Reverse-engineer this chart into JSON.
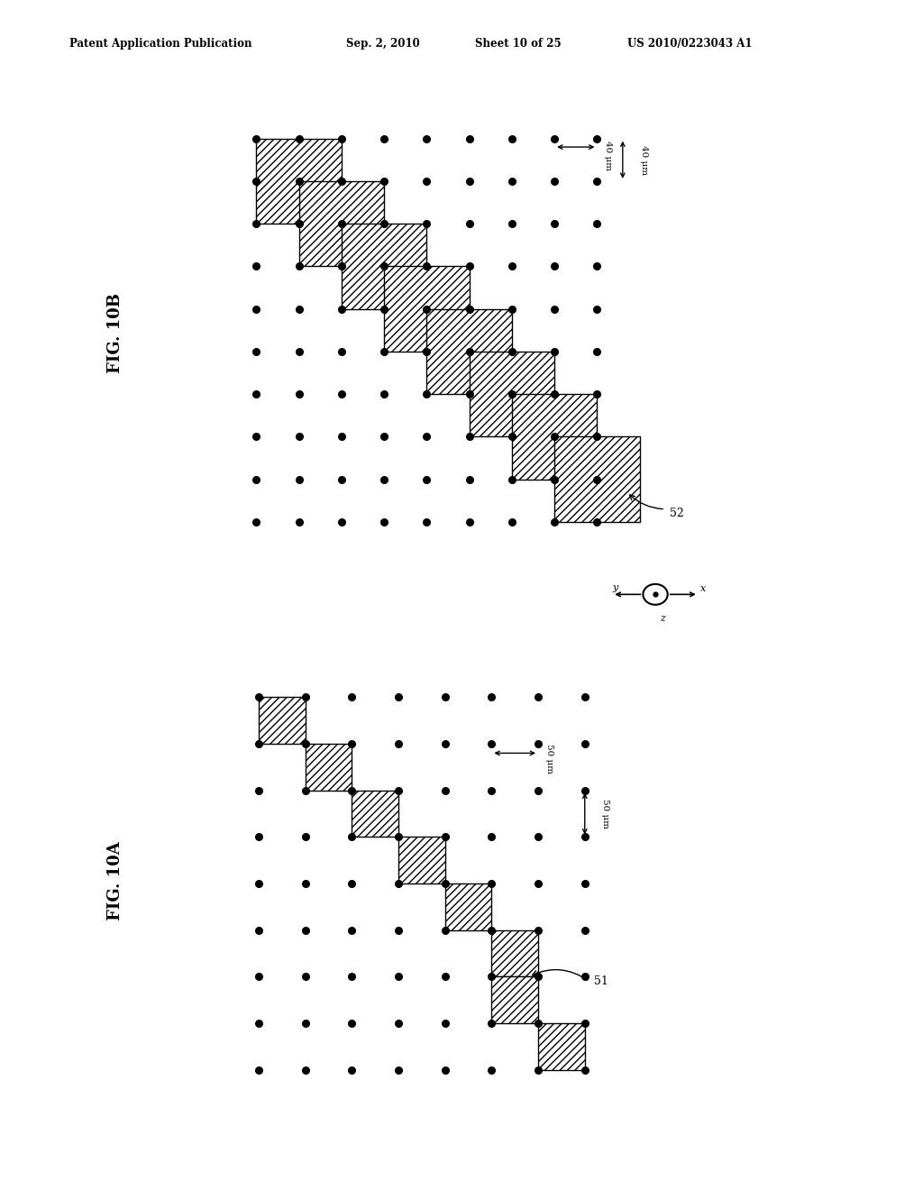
{
  "header_left": "Patent Application Publication",
  "header_date": "Sep. 2, 2010",
  "header_sheet": "Sheet 10 of 25",
  "header_patent": "US 2010/0223043 A1",
  "background_color": "#ffffff",
  "fig_label_10B": "FIG. 10B",
  "fig_label_10A": "FIG. 10A",
  "label_52": "52",
  "label_51": "51",
  "dim_10B_h": "40 μm",
  "dim_10B_v": "40 μm",
  "dim_10A_h": "50 μm",
  "dim_10A_v": "50 μm",
  "grid_10B_cols": 9,
  "grid_10B_rows": 10,
  "grid_10A_cols": 8,
  "grid_10A_rows": 9,
  "hatch_pattern": "////",
  "dot_color": "#000000",
  "square_edge_color": "#000000"
}
